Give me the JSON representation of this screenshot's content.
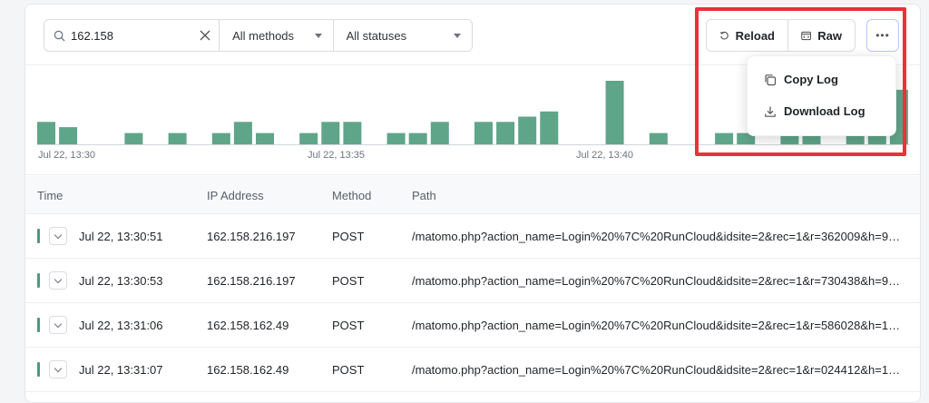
{
  "filters": {
    "search_value": "162.158",
    "methods_label": "All methods",
    "statuses_label": "All statuses"
  },
  "toolbar": {
    "reload_label": "Reload",
    "raw_label": "Raw",
    "more_label": "•••"
  },
  "menu": {
    "items": [
      {
        "label": "Copy Log",
        "icon": "copy-icon"
      },
      {
        "label": "Download Log",
        "icon": "download-icon"
      }
    ]
  },
  "chart_data": {
    "type": "bar",
    "color": "#5fa58a",
    "values": [
      3,
      2.3,
      0,
      0,
      1.5,
      0,
      1.5,
      0,
      1.5,
      3,
      1.5,
      0,
      1.5,
      3,
      3,
      0,
      1.5,
      1.5,
      3,
      0,
      3,
      3,
      3.7,
      4.4,
      0,
      0,
      8.5,
      0,
      1.5,
      0,
      0,
      1.5,
      1.5,
      0,
      1.5,
      1.5,
      0,
      1.5,
      1.5,
      7.3
    ],
    "tick_labels": [
      "Jul 22, 13:30",
      "Jul 22, 13:35",
      "Jul 22, 13:40"
    ]
  },
  "table": {
    "headers": {
      "time": "Time",
      "ip": "IP Address",
      "method": "Method",
      "path": "Path"
    },
    "rows": [
      {
        "time": "Jul 22, 13:30:51",
        "ip": "162.158.216.197",
        "method": "POST",
        "path": "/matomo.php?action_name=Login%20%7C%20RunCloud&idsite=2&rec=1&r=362009&h=9&..."
      },
      {
        "time": "Jul 22, 13:30:53",
        "ip": "162.158.216.197",
        "method": "POST",
        "path": "/matomo.php?action_name=Login%20%7C%20RunCloud&idsite=2&rec=1&r=730438&h=9&..."
      },
      {
        "time": "Jul 22, 13:31:06",
        "ip": "162.158.162.49",
        "method": "POST",
        "path": "/matomo.php?action_name=Login%20%7C%20RunCloud&idsite=2&rec=1&r=586028&h=16&..."
      },
      {
        "time": "Jul 22, 13:31:07",
        "ip": "162.158.162.49",
        "method": "POST",
        "path": "/matomo.php?action_name=Login%20%7C%20RunCloud&idsite=2&rec=1&r=024412&h=16&..."
      }
    ]
  }
}
